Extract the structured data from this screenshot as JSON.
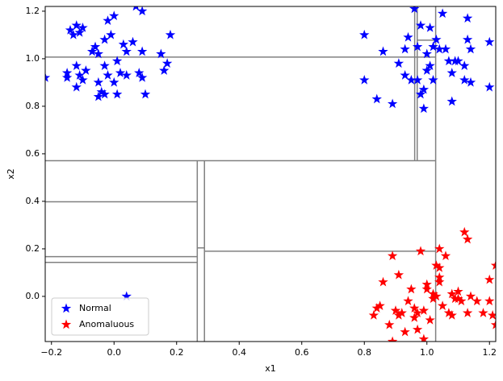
{
  "chart_data": {
    "type": "scatter",
    "xlabel": "x1",
    "ylabel": "x2",
    "xlim": [
      -0.22,
      1.22
    ],
    "ylim": [
      -0.19,
      1.22
    ],
    "xticks": [
      {
        "value": -0.2,
        "label": "−0.2"
      },
      {
        "value": 0,
        "label": "0.0"
      },
      0.2,
      0.4,
      0.6,
      0.8,
      {
        "value": 1,
        "label": "1.0"
      },
      1.2
    ],
    "yticks": [
      {
        "value": 0,
        "label": "0.0"
      },
      0.2,
      0.4,
      0.6,
      0.8,
      {
        "value": 1,
        "label": "1.0"
      },
      1.2
    ],
    "legend": "lower left",
    "marker": "star",
    "line_color": "#808080",
    "series": [
      {
        "name": "Normal",
        "color": "#0000ff",
        "x": [
          -0.15,
          -0.15,
          -0.14,
          -0.13,
          -0.12,
          -0.11,
          -0.1,
          -0.12,
          -0.12,
          -0.11,
          -0.1,
          -0.09,
          -0.07,
          -0.06,
          -0.05,
          -0.05,
          -0.04,
          -0.03,
          -0.05,
          -0.03,
          -0.02,
          -0.01,
          -0.02,
          -0.03,
          0.0,
          0.0,
          0.01,
          0.01,
          0.02,
          0.03,
          0.04,
          0.04,
          0.06,
          0.07,
          0.08,
          0.09,
          0.09,
          0.09,
          0.1,
          0.15,
          0.16,
          0.17,
          0.18,
          -0.22,
          0.04,
          0.8,
          0.8,
          0.84,
          0.86,
          0.89,
          0.91,
          0.93,
          0.93,
          0.94,
          0.95,
          0.96,
          0.97,
          0.97,
          0.98,
          0.98,
          0.99,
          0.99,
          1.0,
          1.0,
          1.01,
          1.01,
          1.02,
          1.02,
          1.03,
          1.04,
          1.05,
          1.06,
          1.07,
          1.08,
          1.08,
          1.09,
          1.1,
          1.12,
          1.12,
          1.13,
          1.13,
          1.14,
          1.14,
          1.2,
          1.2
        ],
        "y": [
          0.94,
          0.92,
          1.12,
          1.1,
          1.14,
          1.11,
          1.13,
          0.97,
          0.88,
          0.93,
          0.91,
          0.95,
          1.03,
          1.05,
          1.02,
          0.84,
          0.86,
          0.85,
          0.9,
          0.97,
          0.93,
          1.1,
          1.16,
          1.08,
          1.18,
          0.9,
          0.99,
          0.85,
          0.94,
          1.06,
          0.93,
          1.03,
          1.07,
          1.22,
          0.94,
          0.92,
          1.03,
          1.2,
          0.85,
          1.02,
          0.95,
          0.98,
          1.1,
          0.92,
          0.0,
          1.1,
          0.91,
          0.83,
          1.03,
          0.81,
          0.98,
          1.04,
          0.93,
          1.09,
          0.91,
          1.21,
          1.05,
          0.91,
          1.14,
          0.85,
          0.79,
          0.87,
          1.02,
          0.95,
          1.13,
          0.97,
          1.05,
          0.91,
          1.08,
          1.04,
          1.19,
          1.04,
          0.99,
          0.82,
          0.94,
          0.99,
          0.99,
          0.97,
          0.91,
          1.17,
          1.08,
          0.9,
          1.04,
          1.07,
          0.88
        ]
      },
      {
        "name": "Anomaluous",
        "color": "#ff0000",
        "x": [
          0.84,
          0.83,
          0.85,
          0.86,
          0.88,
          0.89,
          0.89,
          0.9,
          0.91,
          0.91,
          0.92,
          0.93,
          0.94,
          0.95,
          0.96,
          0.96,
          0.97,
          0.97,
          0.98,
          0.99,
          1.0,
          1.0,
          1.01,
          1.02,
          1.02,
          1.03,
          1.03,
          1.04,
          1.04,
          1.04,
          1.04,
          1.05,
          1.06,
          1.07,
          1.08,
          1.08,
          1.09,
          1.1,
          1.1,
          1.11,
          1.12,
          1.13,
          1.13,
          1.14,
          1.16,
          1.18,
          1.2,
          1.2,
          1.21,
          1.22,
          1.22,
          0.99
        ],
        "y": [
          -0.05,
          -0.08,
          -0.04,
          0.06,
          -0.12,
          0.17,
          -0.19,
          -0.06,
          0.09,
          -0.08,
          -0.07,
          -0.15,
          -0.02,
          0.03,
          -0.05,
          -0.09,
          -0.07,
          -0.14,
          0.19,
          -0.18,
          0.03,
          0.05,
          -0.1,
          0.01,
          -0.01,
          0.13,
          0.0,
          0.2,
          0.12,
          0.06,
          0.08,
          -0.04,
          0.17,
          -0.07,
          0.01,
          -0.08,
          -0.01,
          -0.01,
          0.02,
          -0.02,
          0.27,
          0.24,
          -0.07,
          0.0,
          -0.02,
          -0.07,
          -0.02,
          0.07,
          -0.08,
          -0.12,
          0.13,
          -0.06
        ]
      }
    ],
    "lines": [
      {
        "x": [
          -0.22,
          1.028
        ],
        "y": [
          0.571,
          0.571
        ]
      },
      {
        "x": [
          1.028,
          1.028
        ],
        "y": [
          -0.19,
          1.22
        ]
      },
      {
        "x": [
          -0.22,
          1.028
        ],
        "y": [
          1.007,
          1.007
        ]
      },
      {
        "x": [
          0.961,
          0.961
        ],
        "y": [
          0.571,
          1.22
        ]
      },
      {
        "x": [
          0.969,
          0.969
        ],
        "y": [
          0.571,
          1.22
        ]
      },
      {
        "x": [
          0.969,
          1.028
        ],
        "y": [
          1.078,
          1.078
        ]
      },
      {
        "x": [
          0.266,
          0.266
        ],
        "y": [
          -0.19,
          0.571
        ]
      },
      {
        "x": [
          0.289,
          0.289
        ],
        "y": [
          -0.19,
          0.571
        ]
      },
      {
        "x": [
          0.266,
          0.289
        ],
        "y": [
          0.204,
          0.204
        ]
      },
      {
        "x": [
          0.289,
          1.028
        ],
        "y": [
          0.19,
          0.19
        ]
      },
      {
        "x": [
          -0.22,
          0.266
        ],
        "y": [
          0.398,
          0.398
        ]
      },
      {
        "x": [
          -0.22,
          0.266
        ],
        "y": [
          0.167,
          0.167
        ]
      },
      {
        "x": [
          -0.22,
          0.266
        ],
        "y": [
          0.143,
          0.143
        ]
      }
    ]
  }
}
